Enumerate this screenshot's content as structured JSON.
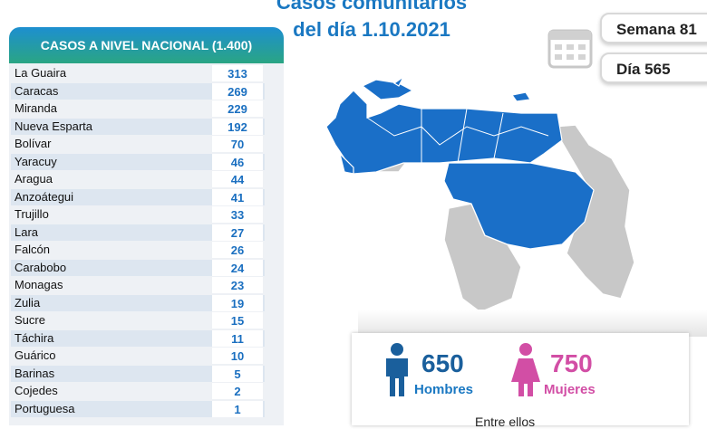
{
  "header": {
    "title_lines": [
      "Casos comunitarios",
      "del día 1.10.2021"
    ]
  },
  "badges": {
    "week": "Semana 81",
    "day": "Día 565"
  },
  "table": {
    "title": "CASOS A NIVEL NACIONAL (1.400)",
    "rows": [
      [
        "La Guaira",
        "313"
      ],
      [
        "Caracas",
        "269"
      ],
      [
        "Miranda",
        "229"
      ],
      [
        "Nueva Esparta",
        "192"
      ],
      [
        "Bolívar",
        "70"
      ],
      [
        "Yaracuy",
        "46"
      ],
      [
        "Aragua",
        "44"
      ],
      [
        "Anzoátegui",
        "41"
      ],
      [
        "Trujillo",
        "33"
      ],
      [
        "Lara",
        "27"
      ],
      [
        "Falcón",
        "26"
      ],
      [
        "Carabobo",
        "24"
      ],
      [
        "Monagas",
        "23"
      ],
      [
        "Zulia",
        "19"
      ],
      [
        "Sucre",
        "15"
      ],
      [
        "Táchira",
        "11"
      ],
      [
        "Guárico",
        "10"
      ],
      [
        "Barinas",
        "5"
      ],
      [
        "Cojedes",
        "2"
      ],
      [
        "Portuguesa",
        "1"
      ]
    ]
  },
  "gender": {
    "men": {
      "count": "650",
      "label": "Hombres"
    },
    "women": {
      "count": "750",
      "label": "Mujeres"
    },
    "note": "Entre ellos"
  }
}
